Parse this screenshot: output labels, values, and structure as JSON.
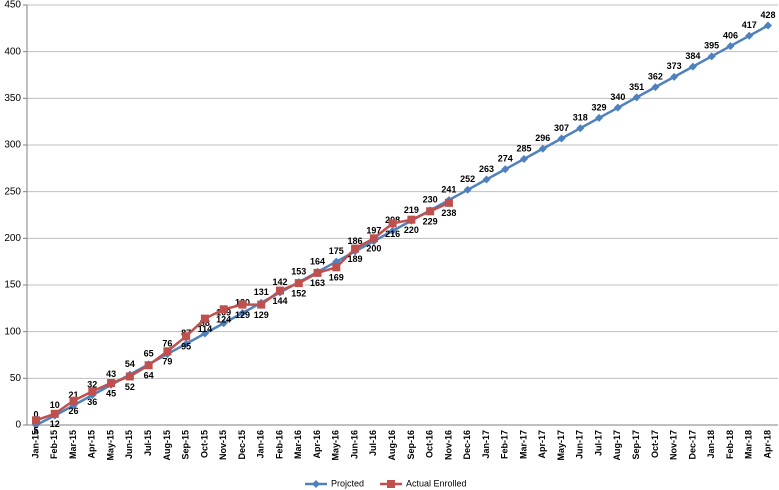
{
  "chart_data": {
    "type": "line",
    "categories": [
      "Jan-15",
      "Feb-15",
      "Mar-15",
      "Apr-15",
      "May-15",
      "Jun-15",
      "Jul-15",
      "Aug-15",
      "Sep-15",
      "Oct-15",
      "Nov-15",
      "Dec-15",
      "Jan-16",
      "Feb-16",
      "Mar-16",
      "Apr-16",
      "May-16",
      "Jun-16",
      "Jul-16",
      "Aug-16",
      "Sep-16",
      "Oct-16",
      "Nov-16",
      "Dec-16",
      "Jan-17",
      "Feb-17",
      "Mar-17",
      "Apr-17",
      "May-17",
      "Jun-17",
      "Jul-17",
      "Aug-17",
      "Sep-17",
      "Oct-17",
      "Nov-17",
      "Dec-17",
      "Jan-18",
      "Feb-18",
      "Mar-18",
      "Apr-18"
    ],
    "series": [
      {
        "name": "Projcted",
        "color": "#4f81bd",
        "marker": "diamond",
        "label_position": "above",
        "values": [
          0,
          10,
          21,
          32,
          43,
          54,
          65,
          76,
          87,
          98,
          109,
          120,
          131,
          142,
          153,
          164,
          175,
          186,
          197,
          208,
          219,
          230,
          241,
          252,
          263,
          274,
          285,
          296,
          307,
          318,
          329,
          340,
          351,
          362,
          373,
          384,
          395,
          406,
          417,
          428
        ]
      },
      {
        "name": "Actual Enrolled",
        "color": "#c0504d",
        "marker": "square",
        "label_position": "below",
        "values": [
          5,
          12,
          26,
          36,
          45,
          52,
          64,
          79,
          95,
          114,
          124,
          129,
          129,
          144,
          152,
          163,
          169,
          189,
          200,
          216,
          220,
          229,
          238,
          null,
          null,
          null,
          null,
          null,
          null,
          null,
          null,
          null,
          null,
          null,
          null,
          null,
          null,
          null,
          null,
          null
        ]
      }
    ],
    "ylim": [
      0,
      450
    ],
    "yticks": [
      0,
      50,
      100,
      150,
      200,
      250,
      300,
      350,
      400,
      450
    ],
    "grid": true,
    "legend": "bottom"
  }
}
